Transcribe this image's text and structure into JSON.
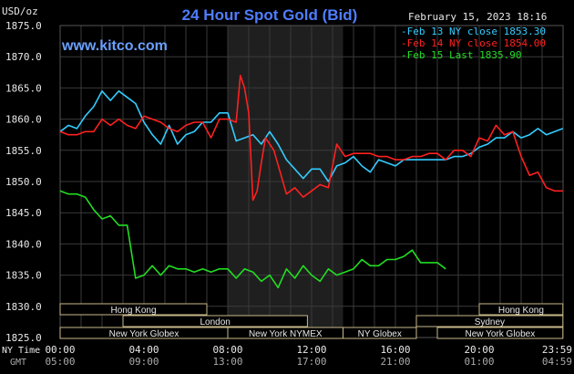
{
  "chart_data": {
    "type": "line",
    "title": "24 Hour Spot Gold (Bid)",
    "watermark": "www.kitco.com",
    "timestamp": "February 15, 2023 18:16",
    "ylabel": "USD/oz",
    "ylim": [
      1825.0,
      1875.0
    ],
    "yticks": [
      "1875.0",
      "1870.0",
      "1865.0",
      "1860.0",
      "1855.0",
      "1850.0",
      "1845.0",
      "1840.0",
      "1835.0",
      "1830.0",
      "1825.0"
    ],
    "xlim": [
      0,
      24
    ],
    "xticks_ny": [
      "00:00",
      "04:00",
      "08:00",
      "12:00",
      "16:00",
      "20:00",
      "23:59"
    ],
    "xticks_gmt": [
      "05:00",
      "09:00",
      "13:00",
      "17:00",
      "21:00",
      "01:00",
      "04:59"
    ],
    "x_row_labels": {
      "ny": "NY Time",
      "gmt": "GMT"
    },
    "grid": true,
    "legend_position": "top-right",
    "highlight_band": [
      8.0,
      13.5
    ],
    "series": [
      {
        "name": "Feb 13 NY close 1853.30",
        "color": "#33ccff",
        "x": [
          0,
          0.4,
          0.8,
          1.2,
          1.6,
          2.0,
          2.4,
          2.8,
          3.2,
          3.6,
          4.0,
          4.4,
          4.8,
          5.2,
          5.6,
          6.0,
          6.4,
          6.8,
          7.2,
          7.6,
          8.0,
          8.4,
          8.8,
          9.2,
          9.6,
          10.0,
          10.4,
          10.8,
          11.2,
          11.6,
          12.0,
          12.4,
          12.8,
          13.2,
          13.6,
          14.0,
          14.4,
          14.8,
          15.2,
          15.6,
          16.0,
          16.4,
          16.8,
          17.2,
          17.6,
          18.0,
          18.4,
          18.8,
          19.2,
          19.6,
          20.0,
          20.4,
          20.8,
          21.2,
          21.6,
          22.0,
          22.4,
          22.8,
          23.2,
          23.6,
          23.99
        ],
        "y": [
          1858.0,
          1859.0,
          1858.5,
          1860.5,
          1862.0,
          1864.5,
          1863.0,
          1864.5,
          1863.5,
          1862.5,
          1859.5,
          1857.5,
          1856.0,
          1859.0,
          1856.0,
          1857.5,
          1858.0,
          1859.5,
          1859.5,
          1861.0,
          1861.0,
          1856.5,
          1857.0,
          1857.5,
          1856.0,
          1858.0,
          1856.0,
          1853.5,
          1852.0,
          1850.5,
          1852.0,
          1852.0,
          1850.0,
          1852.5,
          1853.0,
          1854.0,
          1852.5,
          1851.5,
          1853.5,
          1853.0,
          1852.5,
          1853.5,
          1853.5,
          1853.5,
          1853.5,
          1853.5,
          1853.5,
          1854.0,
          1854.0,
          1854.5,
          1855.5,
          1856.0,
          1857.0,
          1857.0,
          1858.0,
          1857.0,
          1857.5,
          1858.5,
          1857.5,
          1858.0,
          1858.5
        ]
      },
      {
        "name": "Feb 14 NY close 1854.00",
        "color": "#ff2020",
        "x": [
          0,
          0.4,
          0.8,
          1.2,
          1.6,
          2.0,
          2.4,
          2.8,
          3.2,
          3.6,
          4.0,
          4.4,
          4.8,
          5.2,
          5.6,
          6.0,
          6.4,
          6.8,
          7.2,
          7.6,
          8.0,
          8.4,
          8.6,
          8.8,
          9.0,
          9.2,
          9.4,
          9.6,
          9.8,
          10.0,
          10.2,
          10.5,
          10.8,
          11.2,
          11.6,
          12.0,
          12.4,
          12.8,
          13.2,
          13.6,
          14.0,
          14.4,
          14.8,
          15.2,
          15.6,
          16.0,
          16.4,
          16.8,
          17.2,
          17.6,
          18.0,
          18.4,
          18.8,
          19.2,
          19.6,
          20.0,
          20.4,
          20.8,
          21.2,
          21.6,
          22.0,
          22.4,
          22.8,
          23.2,
          23.6,
          23.99
        ],
        "y": [
          1858.0,
          1857.5,
          1857.5,
          1858.0,
          1858.0,
          1860.0,
          1859.0,
          1860.0,
          1859.0,
          1858.5,
          1860.5,
          1860.0,
          1859.5,
          1858.5,
          1858.0,
          1859.0,
          1859.5,
          1859.5,
          1857.0,
          1860.0,
          1860.0,
          1859.5,
          1867.0,
          1865.0,
          1861.0,
          1847.0,
          1848.5,
          1853.0,
          1857.0,
          1856.0,
          1855.0,
          1851.5,
          1848.0,
          1849.0,
          1847.5,
          1848.5,
          1849.5,
          1849.0,
          1856.0,
          1854.0,
          1854.5,
          1854.5,
          1854.5,
          1854.0,
          1854.0,
          1853.5,
          1853.5,
          1854.0,
          1854.0,
          1854.5,
          1854.5,
          1853.5,
          1855.0,
          1855.0,
          1854.0,
          1857.0,
          1856.5,
          1859.0,
          1857.5,
          1858.0,
          1854.0,
          1851.0,
          1851.5,
          1849.0,
          1848.5,
          1848.5
        ]
      },
      {
        "name": "Feb 15 Last 1835.90",
        "color": "#22dd22",
        "x": [
          0,
          0.4,
          0.8,
          1.2,
          1.6,
          2.0,
          2.4,
          2.8,
          3.2,
          3.6,
          4.0,
          4.4,
          4.8,
          5.2,
          5.6,
          6.0,
          6.4,
          6.8,
          7.2,
          7.6,
          8.0,
          8.4,
          8.8,
          9.2,
          9.6,
          10.0,
          10.4,
          10.8,
          11.2,
          11.6,
          12.0,
          12.4,
          12.8,
          13.2,
          13.6,
          14.0,
          14.4,
          14.8,
          15.2,
          15.6,
          16.0,
          16.4,
          16.8,
          17.2,
          17.6,
          18.0,
          18.4
        ],
        "y": [
          1848.5,
          1848.0,
          1848.0,
          1847.5,
          1845.5,
          1844.0,
          1844.5,
          1843.0,
          1843.0,
          1834.5,
          1835.0,
          1836.5,
          1835.0,
          1836.5,
          1836.0,
          1836.0,
          1835.5,
          1836.0,
          1835.5,
          1836.0,
          1836.0,
          1834.5,
          1836.0,
          1835.5,
          1834.0,
          1835.0,
          1833.0,
          1836.0,
          1834.5,
          1836.5,
          1835.0,
          1834.0,
          1836.0,
          1835.0,
          1835.5,
          1836.0,
          1837.5,
          1836.5,
          1836.5,
          1837.5,
          1837.5,
          1838.0,
          1839.0,
          1837.0,
          1837.0,
          1837.0,
          1836.0
        ]
      }
    ],
    "market_bands": [
      {
        "label": "Hong Kong",
        "start": 0,
        "end": 7.0,
        "row": 0
      },
      {
        "label": "Hong Kong",
        "start": 20.0,
        "end": 23.99,
        "row": 0
      },
      {
        "label": "London",
        "start": 3.0,
        "end": 11.8,
        "row": 1
      },
      {
        "label": "Sydney",
        "start": 17.0,
        "end": 23.99,
        "row": 1
      },
      {
        "label": "New York Globex",
        "start": 0,
        "end": 8.0,
        "row": 2
      },
      {
        "label": "New York NYMEX",
        "start": 8.0,
        "end": 13.5,
        "row": 2
      },
      {
        "label": "NY Globex",
        "start": 13.5,
        "end": 17.0,
        "row": 2
      },
      {
        "label": "New York Globex",
        "start": 18.0,
        "end": 23.99,
        "row": 2
      }
    ],
    "colors": {
      "background": "#000000",
      "grid": "#3a3a3a",
      "band": "#1f1f1f",
      "axis_text": "#e8e8e8",
      "title": "#4f7dff",
      "watermark": "#6aa0ff",
      "market_box": "#c8b98a",
      "market_text": "#e8e8e8"
    }
  }
}
